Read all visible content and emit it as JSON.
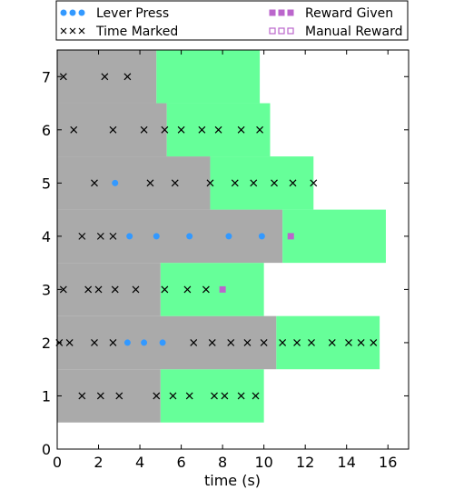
{
  "chart_data": {
    "type": "scatter",
    "xlabel": "time (s)",
    "ylabel": "",
    "xlim": [
      0,
      17
    ],
    "ylim": [
      0,
      7.5
    ],
    "xticks": [
      0,
      2,
      4,
      6,
      8,
      10,
      12,
      14,
      16
    ],
    "yticks": [
      0,
      1,
      2,
      3,
      4,
      5,
      6,
      7
    ],
    "grid": false,
    "legend_position": "top",
    "legend": [
      {
        "name": "Lever Press",
        "marker": "circle",
        "color": "#3399ff"
      },
      {
        "name": "Reward Given",
        "marker": "square",
        "color": "#bb66cc"
      },
      {
        "name": "Time Marked",
        "marker": "x",
        "color": "#000000"
      },
      {
        "name": "Manual Reward",
        "marker": "square-open",
        "color": "#bb66cc"
      }
    ],
    "colors": {
      "gray_phase": "#aaaaaa",
      "green_phase": "#66ff99"
    },
    "trials": [
      {
        "trial": 1,
        "gray_end": 5.0,
        "green_end": 10.0
      },
      {
        "trial": 2,
        "gray_end": 10.6,
        "green_end": 15.6
      },
      {
        "trial": 3,
        "gray_end": 5.0,
        "green_end": 10.0
      },
      {
        "trial": 4,
        "gray_end": 10.9,
        "green_end": 15.9
      },
      {
        "trial": 5,
        "gray_end": 7.4,
        "green_end": 12.4
      },
      {
        "trial": 6,
        "gray_end": 5.3,
        "green_end": 10.3
      },
      {
        "trial": 7,
        "gray_end": 4.8,
        "green_end": 9.8
      }
    ],
    "series": [
      {
        "name": "Lever Press",
        "x": [
          3.4,
          4.2,
          5.1,
          3.5,
          4.8,
          6.4,
          8.3,
          9.9,
          2.8
        ],
        "y": [
          2,
          2,
          2,
          4,
          4,
          4,
          4,
          4,
          5
        ]
      },
      {
        "name": "Reward Given",
        "x": [
          8.0,
          11.3
        ],
        "y": [
          3,
          4
        ]
      },
      {
        "name": "Time Marked",
        "x": [
          1.2,
          2.1,
          3.0,
          4.8,
          5.6,
          6.4,
          7.6,
          8.1,
          8.9,
          9.6,
          0.1,
          0.6,
          1.8,
          2.7,
          6.6,
          7.5,
          8.4,
          9.2,
          10.0,
          10.9,
          11.6,
          12.3,
          13.3,
          14.1,
          14.7,
          15.3,
          0.3,
          1.5,
          2.0,
          2.8,
          3.8,
          5.2,
          6.3,
          7.2,
          1.2,
          2.1,
          2.7,
          1.8,
          4.5,
          5.7,
          7.4,
          8.6,
          9.5,
          10.5,
          11.4,
          12.4,
          0.8,
          2.7,
          4.2,
          5.2,
          6.0,
          7.0,
          7.8,
          8.9,
          9.8,
          0.3,
          2.3,
          3.4
        ],
        "y": [
          1,
          1,
          1,
          1,
          1,
          1,
          1,
          1,
          1,
          1,
          2,
          2,
          2,
          2,
          2,
          2,
          2,
          2,
          2,
          2,
          2,
          2,
          2,
          2,
          2,
          2,
          3,
          3,
          3,
          3,
          3,
          3,
          3,
          3,
          4,
          4,
          4,
          5,
          5,
          5,
          5,
          5,
          5,
          5,
          5,
          5,
          6,
          6,
          6,
          6,
          6,
          6,
          6,
          6,
          6,
          7,
          7,
          7
        ]
      }
    ]
  }
}
